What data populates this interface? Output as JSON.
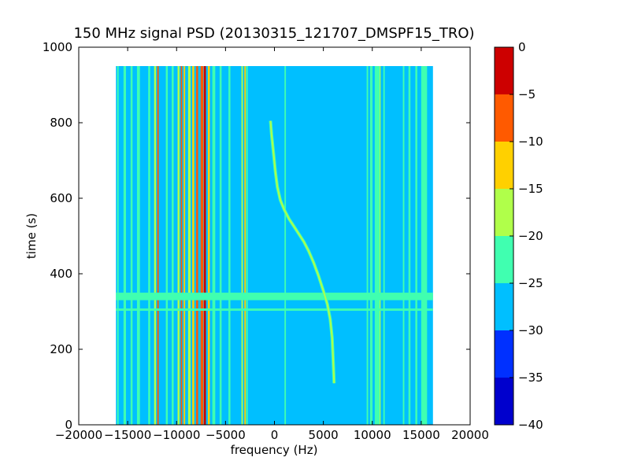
{
  "chart_data": {
    "type": "heatmap",
    "title": "150 MHz signal PSD (20130315_121707_DMSPF15_TRO)",
    "xlabel": "frequency (Hz)",
    "ylabel": "time (s)",
    "xlim": [
      -20000,
      20000
    ],
    "ylim": [
      0,
      1000
    ],
    "x_ticks": [
      -20000,
      -15000,
      -10000,
      -5000,
      0,
      5000,
      10000,
      15000,
      20000
    ],
    "y_ticks": [
      0,
      200,
      400,
      600,
      800,
      1000
    ],
    "x_tick_labels": [
      "−20000",
      "−15000",
      "−10000",
      "−5000",
      "0",
      "5000",
      "10000",
      "15000",
      "20000"
    ],
    "y_tick_labels": [
      "0",
      "200",
      "400",
      "600",
      "800",
      "1000"
    ],
    "data_extent": {
      "x": [
        -16200,
        16200
      ],
      "y": [
        0,
        950
      ]
    },
    "background_level": -27.5,
    "colorbar": {
      "levels": [
        -40,
        -35,
        -30,
        -25,
        -20,
        -15,
        -10,
        -5,
        0
      ],
      "tick_labels": [
        "−40",
        "−35",
        "−30",
        "−25",
        "−20",
        "−15",
        "−10",
        "−5",
        "0"
      ],
      "colors": [
        "#0000cd",
        "#0030ff",
        "#00bfff",
        "#40ffb0",
        "#b0ff4a",
        "#ffd000",
        "#ff5a00",
        "#cd0000"
      ]
    },
    "vertical_lines": [
      {
        "freq": -16000,
        "level": -22.5,
        "width_hz": 150
      },
      {
        "freq": -15300,
        "level": -22.5,
        "width_hz": 250
      },
      {
        "freq": -14600,
        "level": -22.5,
        "width_hz": 200
      },
      {
        "freq": -13900,
        "level": -22.5,
        "width_hz": 300
      },
      {
        "freq": -12800,
        "level": -22.5,
        "width_hz": 200
      },
      {
        "freq": -12200,
        "level": -17.5,
        "width_hz": 200
      },
      {
        "freq": -11900,
        "level": -7.5,
        "width_hz": 150
      },
      {
        "freq": -11000,
        "level": -22.5,
        "width_hz": 200
      },
      {
        "freq": -10400,
        "level": -22.5,
        "width_hz": 200
      },
      {
        "freq": -9800,
        "level": -17.5,
        "width_hz": 200
      },
      {
        "freq": -9500,
        "level": -7.5,
        "width_hz": 150
      },
      {
        "freq": -9200,
        "level": -12.5,
        "width_hz": 150
      },
      {
        "freq": -8700,
        "level": -17.5,
        "width_hz": 250
      },
      {
        "freq": -8300,
        "level": -12.5,
        "width_hz": 200
      },
      {
        "freq": -7900,
        "level": -7.5,
        "width_hz": 200
      },
      {
        "freq": -7400,
        "level": -7.5,
        "width_hz": 300
      },
      {
        "freq": -7100,
        "level": -2.5,
        "width_hz": 200
      },
      {
        "freq": -6700,
        "level": -12.5,
        "width_hz": 200
      },
      {
        "freq": -6200,
        "level": -22.5,
        "width_hz": 300
      },
      {
        "freq": -5500,
        "level": -22.5,
        "width_hz": 200
      },
      {
        "freq": -4600,
        "level": -22.5,
        "width_hz": 200
      },
      {
        "freq": -3300,
        "level": -17.5,
        "width_hz": 150
      },
      {
        "freq": -3000,
        "level": -12.5,
        "width_hz": 150
      },
      {
        "freq": -2800,
        "level": -22.5,
        "width_hz": 150
      },
      {
        "freq": 1100,
        "level": -22.5,
        "width_hz": 150
      },
      {
        "freq": 9500,
        "level": -22.5,
        "width_hz": 150
      },
      {
        "freq": 9900,
        "level": -22.5,
        "width_hz": 250
      },
      {
        "freq": 10500,
        "level": -22.5,
        "width_hz": 500
      },
      {
        "freq": 10800,
        "level": -17.5,
        "width_hz": 100
      },
      {
        "freq": 11200,
        "level": -22.5,
        "width_hz": 150
      },
      {
        "freq": 13200,
        "level": -22.5,
        "width_hz": 150
      },
      {
        "freq": 13800,
        "level": -22.5,
        "width_hz": 200
      },
      {
        "freq": 14500,
        "level": -22.5,
        "width_hz": 200
      },
      {
        "freq": 15300,
        "level": -22.5,
        "width_hz": 600
      }
    ],
    "horizontal_bands": [
      {
        "t_start": 330,
        "t_end": 350,
        "level": -22.5
      },
      {
        "t_start": 302,
        "t_end": 308,
        "level": -22.5
      }
    ],
    "doppler_trace": {
      "level": -17.5,
      "points": [
        {
          "freq": -400,
          "time": 805
        },
        {
          "freq": -300,
          "time": 770
        },
        {
          "freq": -100,
          "time": 720
        },
        {
          "freq": 100,
          "time": 670
        },
        {
          "freq": 300,
          "time": 630
        },
        {
          "freq": 600,
          "time": 595
        },
        {
          "freq": 1000,
          "time": 570
        },
        {
          "freq": 1500,
          "time": 545
        },
        {
          "freq": 2000,
          "time": 525
        },
        {
          "freq": 2500,
          "time": 505
        },
        {
          "freq": 3000,
          "time": 485
        },
        {
          "freq": 3500,
          "time": 460
        },
        {
          "freq": 4000,
          "time": 430
        },
        {
          "freq": 4500,
          "time": 395
        },
        {
          "freq": 5000,
          "time": 355
        },
        {
          "freq": 5400,
          "time": 320
        },
        {
          "freq": 5700,
          "time": 280
        },
        {
          "freq": 5900,
          "time": 230
        },
        {
          "freq": 6000,
          "time": 170
        },
        {
          "freq": 6100,
          "time": 110
        }
      ]
    },
    "grid": false,
    "legend": "none"
  }
}
